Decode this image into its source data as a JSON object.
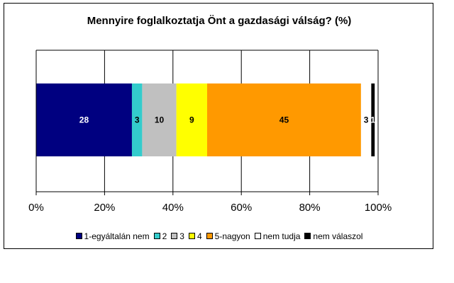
{
  "chart_data": {
    "type": "bar",
    "orientation": "horizontal",
    "stacked": true,
    "title": "Mennyire foglalkoztatja Önt a gazdasági válság?  (%)",
    "xlim": [
      0,
      100
    ],
    "x_ticks": [
      "0%",
      "20%",
      "40%",
      "60%",
      "80%",
      "100%"
    ],
    "grid": true,
    "legend_position": "bottom",
    "series": [
      {
        "name": "1-egyáltalán nem",
        "value": 28,
        "label": "28",
        "color": "#000080",
        "label_color": "#ffffff"
      },
      {
        "name": "2",
        "value": 3,
        "label": "3",
        "color": "#33cccc",
        "label_color": "#000000"
      },
      {
        "name": "3",
        "value": 10,
        "label": "10",
        "color": "#c0c0c0",
        "label_color": "#000000"
      },
      {
        "name": "4",
        "value": 9,
        "label": "9",
        "color": "#ffff00",
        "label_color": "#000000"
      },
      {
        "name": "5-nagyon",
        "value": 45,
        "label": "45",
        "color": "#ff9900",
        "label_color": "#000000"
      },
      {
        "name": "nem tudja",
        "value": 3,
        "label": "3",
        "color": "#ffffff",
        "label_color": "#000000"
      },
      {
        "name": "nem válaszol",
        "value": 1,
        "label": "1",
        "color": "#000000",
        "label_color": "#ffffff"
      }
    ]
  }
}
